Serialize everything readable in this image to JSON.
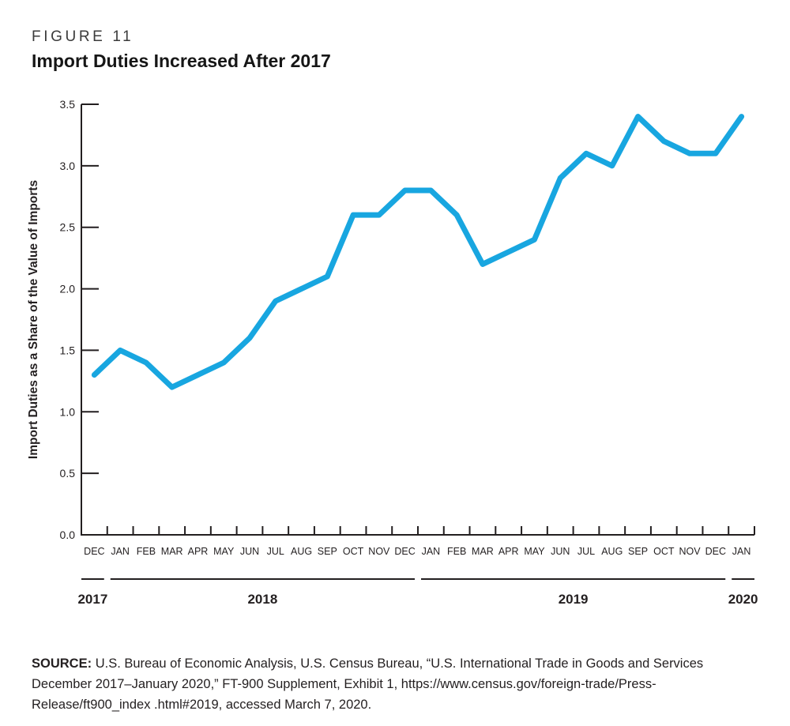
{
  "figure": {
    "label": "FIGURE 11",
    "title": "Import Duties Increased After 2017"
  },
  "chart_data": {
    "type": "line",
    "title": "Import Duties Increased After 2017",
    "series_name": "Import duties as a share of the value of imports (%)",
    "xlabel": "",
    "ylabel": "Import Duties as a Share of the Value of Imports",
    "ylim": [
      0.0,
      3.5
    ],
    "ytick_labels": [
      "0.0",
      "0.5",
      "1.0",
      "1.5",
      "2.0",
      "2.5",
      "3.0",
      "3.5"
    ],
    "categories": [
      "DEC",
      "JAN",
      "FEB",
      "MAR",
      "APR",
      "MAY",
      "JUN",
      "JUL",
      "AUG",
      "SEP",
      "OCT",
      "NOV",
      "DEC",
      "JAN",
      "FEB",
      "MAR",
      "APR",
      "MAY",
      "JUN",
      "JUL",
      "AUG",
      "SEP",
      "OCT",
      "NOV",
      "DEC",
      "JAN"
    ],
    "values": [
      1.3,
      1.5,
      1.4,
      1.2,
      1.3,
      1.4,
      1.6,
      1.9,
      2.0,
      2.1,
      2.6,
      2.6,
      2.8,
      2.8,
      2.6,
      2.2,
      2.3,
      2.4,
      2.9,
      3.1,
      3.0,
      3.4,
      3.2,
      3.1,
      3.1,
      3.4
    ],
    "years": [
      {
        "label": "2017",
        "from": 0,
        "to": 1
      },
      {
        "label": "2018",
        "from": 1,
        "to": 13
      },
      {
        "label": "2019",
        "from": 13,
        "to": 25
      },
      {
        "label": "2020",
        "from": 25,
        "to": 26
      }
    ],
    "grid": false,
    "legend": "none",
    "line_color": "#18a6e0",
    "axis_color": "#231f20"
  },
  "source": {
    "label": "SOURCE:",
    "text": "U.S. Bureau of Economic Analysis, U.S. Census Bureau, “U.S. International Trade in Goods and Services December 2017–January 2020,” FT-900 Supplement, Exhibit 1, https://www.census.gov/foreign-trade/Press-Release/ft900_index .html#2019, accessed March 7, 2020."
  }
}
